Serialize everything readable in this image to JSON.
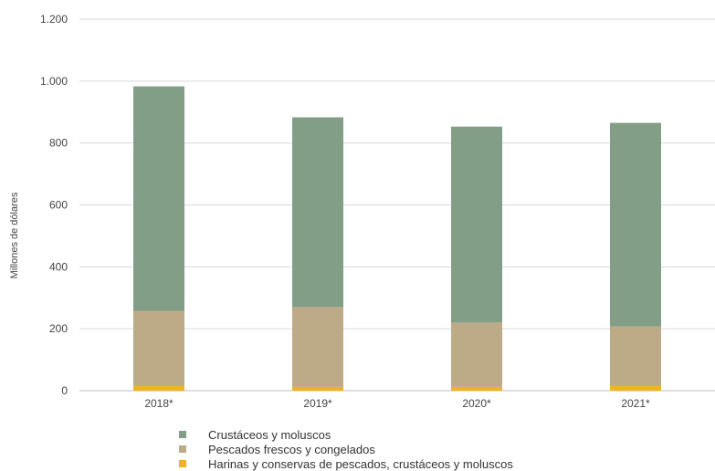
{
  "chart_data": {
    "type": "bar",
    "stacked": true,
    "categories": [
      "2018*",
      "2019*",
      "2020*",
      "2021*"
    ],
    "series": [
      {
        "name": "Harinas y conservas de pescados, crustáceos y moluscos",
        "color": "#f0b323",
        "values": [
          15,
          12,
          12,
          15
        ]
      },
      {
        "name": "Pescados frescos y congelados",
        "color": "#bdab88",
        "values": [
          243,
          258,
          208,
          193
        ]
      },
      {
        "name": "Crustáceos y moluscos",
        "color": "#839e86",
        "values": [
          725,
          613,
          633,
          657
        ]
      }
    ],
    "xlabel": "",
    "ylabel": "Millones de dólares",
    "ylim": [
      0,
      1200
    ],
    "yticks": [
      0,
      200,
      400,
      600,
      800,
      1000,
      1200
    ],
    "ytick_labels": [
      "0",
      "200",
      "400",
      "600",
      "800",
      "1.000",
      "1.200"
    ],
    "grid": true,
    "legend_position": "bottom",
    "legend_order": [
      "Crustáceos y moluscos",
      "Pescados frescos y congelados",
      "Harinas y conservas de pescados, crustáceos y moluscos"
    ]
  }
}
